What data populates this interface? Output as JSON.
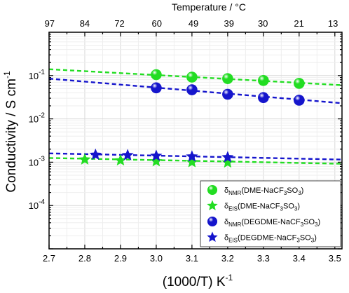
{
  "chart_data": {
    "type": "scatter",
    "x_axis": {
      "label_main": "(1000/T) K",
      "label_sup": "-1",
      "range": [
        2.7,
        3.52
      ],
      "ticks": [
        "2.7",
        "2.8",
        "2.9",
        "3.0",
        "3.1",
        "3.2",
        "3.3",
        "3.4",
        "3.5"
      ]
    },
    "top_axis": {
      "label": "Temperature / °C",
      "ticks": [
        97,
        84,
        72,
        60,
        49,
        39,
        30,
        21,
        13
      ]
    },
    "y_axis": {
      "label_main": "Conductivity / S cm",
      "label_sup": "-1",
      "scale": "log",
      "range": [
        1e-05,
        1
      ],
      "ticks": [
        {
          "base": "10",
          "exp": "-1",
          "value": 0.1
        },
        {
          "base": "10",
          "exp": "-2",
          "value": 0.01
        },
        {
          "base": "10",
          "exp": "-3",
          "value": 0.001
        },
        {
          "base": "10",
          "exp": "-4",
          "value": 0.0001
        }
      ]
    },
    "grid": true,
    "legend_position": "bottom-right",
    "series": [
      {
        "name": "δNMR(DME-NaCF3SO3)",
        "label_parts": [
          "δ",
          "NMR",
          "(DME-NaCF",
          "3",
          "SO",
          "3",
          ")"
        ],
        "marker": "circle",
        "color": "#22dd22",
        "x": [
          3.0,
          3.1,
          3.2,
          3.3,
          3.4
        ],
        "y": [
          0.105,
          0.092,
          0.085,
          0.077,
          0.066
        ],
        "fit": {
          "x": [
            2.7,
            3.52
          ],
          "y": [
            0.14,
            0.06
          ]
        }
      },
      {
        "name": "δEIS(DME-NaCF3SO3)",
        "label_parts": [
          "δ",
          "EIS",
          "(DME-NaCF",
          "3",
          "SO",
          "3",
          ")"
        ],
        "marker": "star",
        "color": "#22dd22",
        "x": [
          2.8,
          2.9,
          3.0,
          3.1,
          3.2
        ],
        "y": [
          0.00115,
          0.0011,
          0.00105,
          0.001,
          0.00098
        ],
        "fit": {
          "x": [
            2.7,
            3.52
          ],
          "y": [
            0.00125,
            0.00092
          ]
        }
      },
      {
        "name": "δNMR(DEGDME-NaCF3SO3)",
        "label_parts": [
          "δ",
          "NMR",
          "(DEGDME-NaCF",
          "3",
          "SO",
          "3",
          ")"
        ],
        "marker": "circle",
        "color": "#1515cc",
        "x": [
          3.0,
          3.1,
          3.2,
          3.3,
          3.4
        ],
        "y": [
          0.052,
          0.047,
          0.037,
          0.031,
          0.027
        ],
        "fit": {
          "x": [
            2.7,
            3.52
          ],
          "y": [
            0.085,
            0.023
          ]
        }
      },
      {
        "name": "δEIS(DEGDME-NaCF3SO3)",
        "label_parts": [
          "δ",
          "EIS",
          "(DEGDME-NaCF",
          "3",
          "SO",
          "3",
          ")"
        ],
        "marker": "star",
        "color": "#1515cc",
        "x": [
          2.83,
          2.92,
          3.0,
          3.1,
          3.2
        ],
        "y": [
          0.00148,
          0.00145,
          0.0014,
          0.00135,
          0.0013
        ],
        "fit": {
          "x": [
            2.7,
            3.52
          ],
          "y": [
            0.0016,
            0.00115
          ]
        }
      }
    ]
  }
}
